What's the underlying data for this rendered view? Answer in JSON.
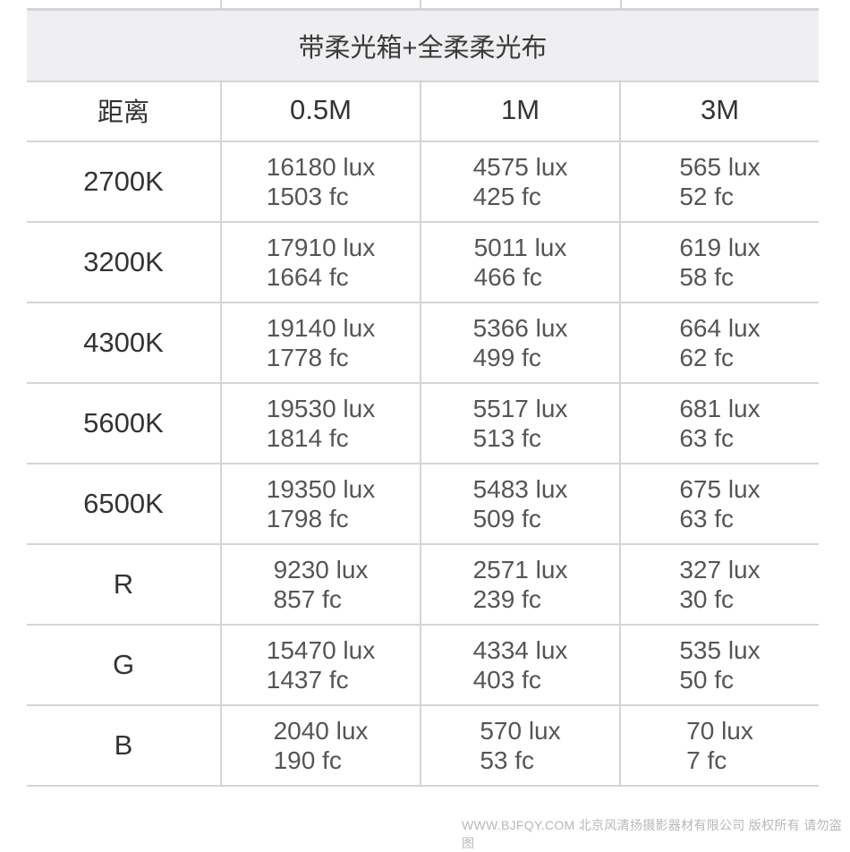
{
  "title": "带柔光箱+全柔柔光布",
  "header": [
    "距离",
    "0.5M",
    "1M",
    "3M"
  ],
  "rows": [
    {
      "label": "2700K",
      "cells": [
        [
          "16180 lux",
          "1503 fc"
        ],
        [
          "4575 lux",
          "425 fc"
        ],
        [
          "565 lux",
          "52 fc"
        ]
      ]
    },
    {
      "label": "3200K",
      "cells": [
        [
          "17910 lux",
          "1664 fc"
        ],
        [
          "5011 lux",
          "466 fc"
        ],
        [
          "619 lux",
          "58 fc"
        ]
      ]
    },
    {
      "label": "4300K",
      "cells": [
        [
          "19140 lux",
          "1778 fc"
        ],
        [
          "5366 lux",
          "499 fc"
        ],
        [
          "664 lux",
          "62 fc"
        ]
      ]
    },
    {
      "label": "5600K",
      "cells": [
        [
          "19530 lux",
          "1814 fc"
        ],
        [
          "5517 lux",
          "513 fc"
        ],
        [
          "681 lux",
          "63 fc"
        ]
      ]
    },
    {
      "label": "6500K",
      "cells": [
        [
          "19350 lux",
          "1798 fc"
        ],
        [
          "5483 lux",
          "509 fc"
        ],
        [
          "675 lux",
          "63 fc"
        ]
      ]
    },
    {
      "label": "R",
      "cells": [
        [
          "9230 lux",
          "857 fc"
        ],
        [
          "2571 lux",
          "239 fc"
        ],
        [
          "327 lux",
          "30 fc"
        ]
      ]
    },
    {
      "label": "G",
      "cells": [
        [
          "15470 lux",
          "1437 fc"
        ],
        [
          "4334 lux",
          "403 fc"
        ],
        [
          "535 lux",
          "50 fc"
        ]
      ]
    },
    {
      "label": "B",
      "cells": [
        [
          "2040 lux",
          "190 fc"
        ],
        [
          "570 lux",
          "53 fc"
        ],
        [
          "70 lux",
          "7 fc"
        ]
      ]
    }
  ],
  "watermark": "WWW.BJFQY.COM 北京风清扬摄影器材有限公司 版权所有 请勿盗图"
}
